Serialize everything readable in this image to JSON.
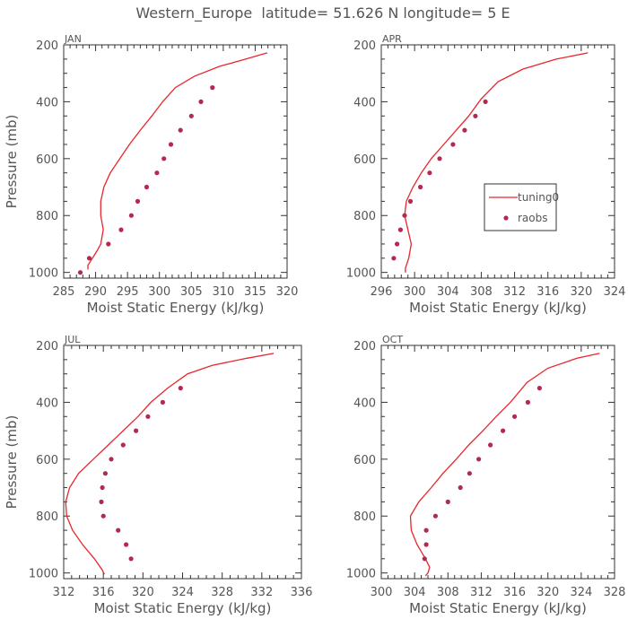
{
  "figure": {
    "title": "Western_Europe  latitude= 51.626 N longitude= 5 E",
    "colors": {
      "model": "#e8262b",
      "obs": "#b5284f",
      "text": "#555555",
      "axis": "#333333"
    }
  },
  "chart_data": [
    {
      "type": "line",
      "panel_label": "JAN",
      "xlabel": "Moist Static Energy (kJ/kg)",
      "ylabel": "Pressure (mb)",
      "xlim": [
        285,
        320
      ],
      "ylim": [
        1020,
        200
      ],
      "x_ticks": [
        285,
        290,
        295,
        300,
        305,
        310,
        315,
        320
      ],
      "y_ticks": [
        200,
        400,
        600,
        800,
        1000
      ],
      "series": [
        {
          "name": "tuning0",
          "style": "line",
          "x": [
            316.9,
            313.5,
            309.5,
            305.5,
            302.5,
            300.5,
            298.8,
            297,
            295.3,
            293.8,
            292.3,
            291.3,
            290.8,
            290.8,
            291.2,
            290.8,
            290.2,
            289.5,
            288.8,
            288.8
          ],
          "y": [
            228,
            250,
            275,
            310,
            350,
            400,
            450,
            500,
            550,
            600,
            650,
            700,
            750,
            800,
            850,
            900,
            925,
            950,
            975,
            990
          ]
        },
        {
          "name": "raobs",
          "style": "points",
          "x": [
            308.3,
            306.5,
            305,
            303.3,
            301.8,
            300.7,
            299.6,
            298,
            296.6,
            295.6,
            294,
            292,
            289,
            287.6
          ],
          "y": [
            350,
            400,
            450,
            500,
            550,
            600,
            650,
            700,
            750,
            800,
            850,
            900,
            950,
            1000
          ]
        }
      ]
    },
    {
      "type": "line",
      "panel_label": "APR",
      "xlabel": "Moist Static Energy (kJ/kg)",
      "ylabel": "",
      "xlim": [
        296,
        324
      ],
      "ylim": [
        1020,
        200
      ],
      "x_ticks": [
        296,
        300,
        304,
        308,
        312,
        316,
        320,
        324
      ],
      "y_ticks": [
        200,
        400,
        600,
        800,
        1000
      ],
      "legend": {
        "position": "right",
        "entries": [
          "tuning0",
          "raobs"
        ]
      },
      "series": [
        {
          "name": "tuning0",
          "style": "line",
          "x": [
            320.8,
            317,
            313,
            310,
            308,
            306.5,
            305,
            303.5,
            302,
            300.8,
            299.8,
            299,
            298.8,
            299.2,
            299.6,
            299.3,
            298.9,
            298.9
          ],
          "y": [
            228,
            250,
            285,
            330,
            390,
            450,
            500,
            550,
            600,
            650,
            700,
            750,
            800,
            850,
            900,
            950,
            985,
            1000
          ]
        },
        {
          "name": "raobs",
          "style": "points",
          "x": [
            308.5,
            307.3,
            306,
            304.6,
            303,
            301.8,
            300.7,
            299.5,
            298.8,
            298.3,
            297.9,
            297.5
          ],
          "y": [
            400,
            450,
            500,
            550,
            600,
            650,
            700,
            750,
            800,
            850,
            900,
            950
          ]
        }
      ]
    },
    {
      "type": "line",
      "panel_label": "JUL",
      "xlabel": "Moist Static Energy (kJ/kg)",
      "ylabel": "Pressure (mb)",
      "xlim": [
        312,
        336
      ],
      "ylim": [
        1020,
        200
      ],
      "x_ticks": [
        312,
        316,
        320,
        324,
        328,
        332,
        336
      ],
      "y_ticks": [
        200,
        400,
        600,
        800,
        1000
      ],
      "series": [
        {
          "name": "tuning0",
          "style": "line",
          "x": [
            333.2,
            330.5,
            327,
            324.5,
            322.5,
            320.8,
            319.5,
            318,
            316.5,
            315,
            313.5,
            312.6,
            312.2,
            312.3,
            312.9,
            313.9,
            315.1,
            315.9,
            316.1
          ],
          "y": [
            228,
            245,
            270,
            300,
            350,
            400,
            450,
            500,
            550,
            600,
            650,
            700,
            750,
            800,
            850,
            900,
            950,
            990,
            1005
          ]
        },
        {
          "name": "raobs",
          "style": "points",
          "x": [
            323.8,
            322,
            320.5,
            319.3,
            318,
            316.8,
            316.2,
            315.9,
            315.8,
            316,
            317.5,
            318.3,
            318.8
          ],
          "y": [
            350,
            400,
            450,
            500,
            550,
            600,
            650,
            700,
            750,
            800,
            850,
            900,
            950
          ]
        }
      ]
    },
    {
      "type": "line",
      "panel_label": "OCT",
      "xlabel": "Moist Static Energy (kJ/kg)",
      "ylabel": "",
      "xlim": [
        300,
        328
      ],
      "ylim": [
        1020,
        200
      ],
      "x_ticks": [
        300,
        304,
        308,
        312,
        316,
        320,
        324,
        328
      ],
      "y_ticks": [
        200,
        400,
        600,
        800,
        1000
      ],
      "series": [
        {
          "name": "tuning0",
          "style": "line",
          "x": [
            326.2,
            323.5,
            320,
            317.5,
            315.5,
            313.8,
            312.2,
            310.5,
            309,
            307.4,
            306,
            304.5,
            303.5,
            303.6,
            304.3,
            305.3,
            305.8,
            305.6,
            305.3
          ],
          "y": [
            228,
            245,
            280,
            330,
            400,
            450,
            500,
            550,
            600,
            650,
            700,
            750,
            800,
            850,
            900,
            950,
            980,
            1000,
            1010
          ]
        },
        {
          "name": "raobs",
          "style": "points",
          "x": [
            319,
            317.6,
            316,
            314.6,
            313.1,
            311.7,
            310.6,
            309.5,
            308,
            306.5,
            305.4,
            305.4,
            305.2
          ],
          "y": [
            350,
            400,
            450,
            500,
            550,
            600,
            650,
            700,
            750,
            800,
            850,
            900,
            950
          ]
        }
      ]
    }
  ]
}
